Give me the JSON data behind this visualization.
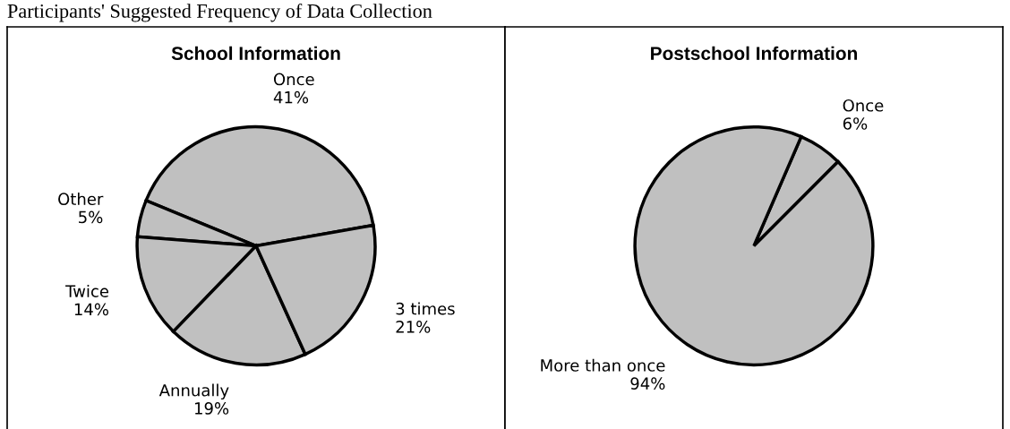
{
  "chart_data": [
    {
      "type": "pie",
      "title": "School Information",
      "categories": [
        "Once",
        "Other",
        "Twice",
        "Annually",
        "3 times"
      ],
      "values": [
        41,
        5,
        14,
        19,
        21
      ],
      "colors": [
        "#c0c0c0",
        "#c0c0c0",
        "#c0c0c0",
        "#c0c0c0",
        "#c0c0c0"
      ],
      "value_labels": [
        "41%",
        "5%",
        "14%",
        "19%",
        "21%"
      ],
      "annotations": [
        "Participants' Suggested Frequency of Data Collection"
      ]
    },
    {
      "type": "pie",
      "title": "Postschool Information",
      "categories": [
        "Once",
        "More than once"
      ],
      "values": [
        6,
        94
      ],
      "colors": [
        "#c0c0c0",
        "#c0c0c0"
      ],
      "value_labels": [
        "6%",
        "94%"
      ]
    }
  ]
}
